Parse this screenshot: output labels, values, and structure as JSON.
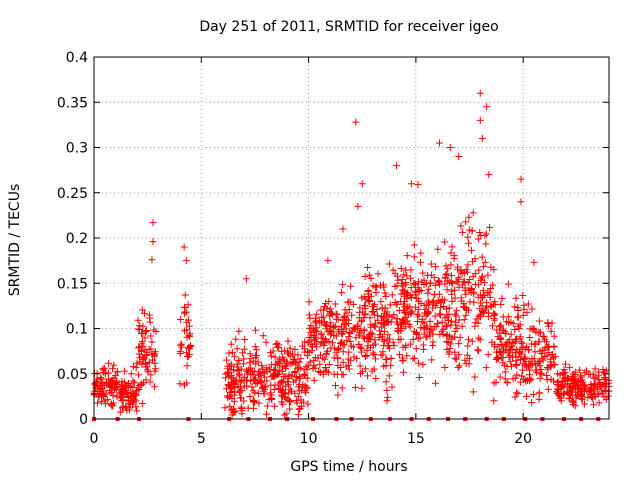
{
  "chart_data": {
    "type": "scatter",
    "title": "Day 251 of 2011, SRMTID for receiver igeo",
    "xlabel": "GPS time / hours",
    "ylabel": "SRMTID / TECUs",
    "xlim": [
      0,
      24
    ],
    "ylim": [
      0,
      0.4
    ],
    "xticks": [
      0,
      5,
      10,
      15,
      20
    ],
    "xtick_labels": [
      "0",
      "5",
      "10",
      "15",
      "20"
    ],
    "yticks": [
      0,
      0.05,
      0.1,
      0.15,
      0.2,
      0.25,
      0.3,
      0.35,
      0.4
    ],
    "ytick_labels": [
      "0",
      "0.05",
      "0.1",
      "0.15",
      "0.2",
      "0.25",
      "0.3",
      "0.35",
      "0.4"
    ],
    "grid": true,
    "marker": "+",
    "color": "#ff0000",
    "series": [
      {
        "name": "SRMTID",
        "segments": [
          {
            "t0": 0.0,
            "t1": 1.1,
            "mean": 0.035,
            "spread": 0.02,
            "n": 90
          },
          {
            "t0": 1.2,
            "t1": 2.0,
            "mean": 0.03,
            "spread": 0.025,
            "n": 70
          },
          {
            "t0": 2.0,
            "t1": 2.9,
            "mean": 0.07,
            "spread": 0.04,
            "n": 70
          },
          {
            "t0": 4.0,
            "t1": 4.5,
            "mean": 0.09,
            "spread": 0.05,
            "n": 35
          },
          {
            "t0": 6.1,
            "t1": 7.5,
            "mean": 0.04,
            "spread": 0.04,
            "n": 120
          },
          {
            "t0": 7.5,
            "t1": 10.0,
            "mean": 0.05,
            "spread": 0.04,
            "n": 200
          },
          {
            "t0": 10.0,
            "t1": 12.0,
            "mean": 0.09,
            "spread": 0.05,
            "n": 170
          },
          {
            "t0": 12.0,
            "t1": 14.0,
            "mean": 0.1,
            "spread": 0.06,
            "n": 170
          },
          {
            "t0": 14.0,
            "t1": 16.0,
            "mean": 0.12,
            "spread": 0.06,
            "n": 180
          },
          {
            "t0": 16.0,
            "t1": 18.7,
            "mean": 0.13,
            "spread": 0.08,
            "n": 230
          },
          {
            "t0": 18.7,
            "t1": 20.0,
            "mean": 0.08,
            "spread": 0.05,
            "n": 110
          },
          {
            "t0": 20.0,
            "t1": 21.5,
            "mean": 0.07,
            "spread": 0.045,
            "n": 110
          },
          {
            "t0": 21.5,
            "t1": 24.0,
            "mean": 0.035,
            "spread": 0.02,
            "n": 180
          }
        ],
        "peaks": [
          {
            "x": 2.75,
            "y": 0.217
          },
          {
            "x": 2.75,
            "y": 0.196
          },
          {
            "x": 2.7,
            "y": 0.176
          },
          {
            "x": 4.2,
            "y": 0.19
          },
          {
            "x": 4.3,
            "y": 0.175
          },
          {
            "x": 12.2,
            "y": 0.328
          },
          {
            "x": 12.5,
            "y": 0.26
          },
          {
            "x": 12.3,
            "y": 0.235
          },
          {
            "x": 14.1,
            "y": 0.28
          },
          {
            "x": 14.8,
            "y": 0.26
          },
          {
            "x": 15.1,
            "y": 0.259
          },
          {
            "x": 16.1,
            "y": 0.305
          },
          {
            "x": 16.6,
            "y": 0.3
          },
          {
            "x": 17.0,
            "y": 0.29
          },
          {
            "x": 18.0,
            "y": 0.36
          },
          {
            "x": 18.3,
            "y": 0.345
          },
          {
            "x": 18.0,
            "y": 0.33
          },
          {
            "x": 18.1,
            "y": 0.31
          },
          {
            "x": 18.4,
            "y": 0.27
          },
          {
            "x": 19.9,
            "y": 0.265
          },
          {
            "x": 19.9,
            "y": 0.24
          },
          {
            "x": 20.5,
            "y": 0.173
          },
          {
            "x": 10.9,
            "y": 0.175
          },
          {
            "x": 11.6,
            "y": 0.21
          },
          {
            "x": 7.1,
            "y": 0.155
          }
        ],
        "zero_marks": [
          0.0,
          1.1,
          2.1,
          4.4,
          6.3,
          7.2,
          8.2,
          9.0,
          10.2,
          11.3,
          12.0,
          12.9,
          13.8,
          14.8,
          15.6,
          16.5,
          17.3,
          18.3,
          19.1,
          20.1,
          20.9,
          21.9,
          22.7,
          23.5
        ]
      }
    ]
  }
}
